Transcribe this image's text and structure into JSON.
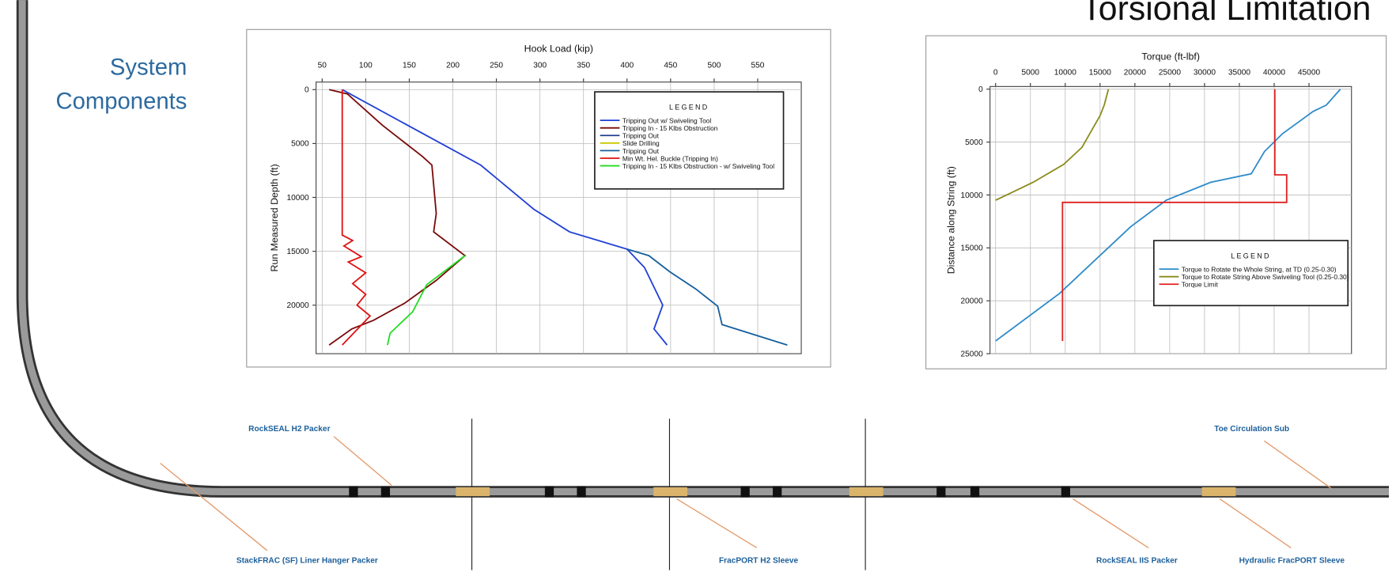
{
  "header": {
    "title": "Torsional Limitation",
    "side_title": [
      "System",
      "Components"
    ]
  },
  "chart_data": [
    {
      "type": "line",
      "xlabel": "Hook Load (kip)",
      "ylabel": "Run Measured Depth (ft)",
      "xlim": [
        43,
        600
      ],
      "xticks": [
        50,
        100,
        150,
        200,
        250,
        300,
        350,
        400,
        450,
        500,
        550
      ],
      "ylim": [
        -700,
        24500
      ],
      "yticks": [
        0,
        5000,
        10000,
        15000,
        20000
      ],
      "y_inverted": true,
      "x_axis_position": "top",
      "grid": true,
      "legend": "upper right",
      "legend_title": "LEGEND",
      "series": [
        {
          "name": "Tripping Out w/ Swiveling Tool",
          "color": "#1f3fd6",
          "x": [
            73,
            232,
            293,
            334,
            400,
            420,
            441,
            431,
            446
          ],
          "values": [
            0,
            7000,
            11100,
            13200,
            14800,
            16500,
            20000,
            22200,
            23700
          ]
        },
        {
          "name": "Tripping In - 15 Klbs Obstruction",
          "color": "#7a0a0a",
          "x": [
            58,
            79,
            119,
            165,
            176,
            181,
            178,
            214,
            181,
            145,
            109,
            84,
            58
          ],
          "values": [
            0,
            400,
            3300,
            6200,
            7000,
            11500,
            13200,
            15400,
            17700,
            19800,
            21400,
            22200,
            23700
          ]
        },
        {
          "name": "Tripping Out",
          "color": "#23408e",
          "x": [],
          "values": []
        },
        {
          "name": "Slide Drilling",
          "color": "#c8c800",
          "x": [],
          "values": []
        },
        {
          "name": "Tripping Out",
          "color": "#16609e",
          "x": [
            400,
            425,
            449,
            479,
            504,
            509,
            584
          ],
          "values": [
            14800,
            15400,
            16900,
            18500,
            20100,
            21800,
            23700
          ]
        },
        {
          "name": "Min Wt. Hel. Buckle (Tripping In)",
          "color": "#e01010",
          "x": [
            73,
            73,
            85,
            75,
            95,
            80,
            100,
            85,
            100,
            90,
            105,
            73
          ],
          "values": [
            0,
            13500,
            14000,
            14500,
            15500,
            16000,
            17000,
            18000,
            19000,
            20000,
            21000,
            23700
          ]
        },
        {
          "name": "Tripping In - 15 Klbs Obstruction - w/ Swiveling Tool",
          "color": "#22dd22",
          "x": [
            214,
            170,
            154,
            128,
            125
          ],
          "values": [
            15400,
            18100,
            20600,
            22600,
            23700
          ]
        }
      ]
    },
    {
      "type": "line",
      "xlabel": "Torque (ft-lbf)",
      "ylabel": "Distance along String (ft)",
      "xlim": [
        -800,
        51100
      ],
      "xticks": [
        0,
        5000,
        10000,
        15000,
        20000,
        25000,
        30000,
        35000,
        40000,
        45000
      ],
      "ylim": [
        -250,
        25000
      ],
      "yticks": [
        0,
        5000,
        10000,
        15000,
        20000,
        25000
      ],
      "y_inverted": true,
      "x_axis_position": "top",
      "grid": true,
      "legend": "lower right",
      "legend_title": "LEGEND",
      "series": [
        {
          "name": "Torque to Rotate the Whole String, at TD (0.25-0.30)",
          "color": "#2e8bc9",
          "x": [
            0,
            9200,
            19400,
            24500,
            30900,
            36700,
            38600,
            41200,
            45600,
            47500,
            49500
          ],
          "values": [
            23800,
            19300,
            13000,
            10500,
            8800,
            8000,
            5900,
            4200,
            2100,
            1500,
            0
          ]
        },
        {
          "name": "Torque to Rotate String Above Swiveling Tool (0.25-0.30)",
          "color": "#8a8a1a",
          "x": [
            0,
            5400,
            9800,
            12400,
            15000,
            15600,
            16200
          ],
          "values": [
            10500,
            8800,
            7100,
            5500,
            2500,
            1500,
            0
          ]
        },
        {
          "name": "Torque Limit",
          "color": "#e02020",
          "x": [
            9600,
            9600,
            41800,
            41800,
            40100,
            40100
          ],
          "values": [
            23800,
            10700,
            10700,
            8100,
            8100,
            0
          ]
        }
      ]
    }
  ],
  "diagram": {
    "labels": [
      "RockSEAL H2 Packer",
      "StackFRAC (SF) Liner Hanger Packer",
      "FracPORT H2 Sleeve",
      "RockSEAL IIS Packer",
      "Toe Circulation Sub",
      "Hydraulic FracPORT Sleeve"
    ]
  }
}
